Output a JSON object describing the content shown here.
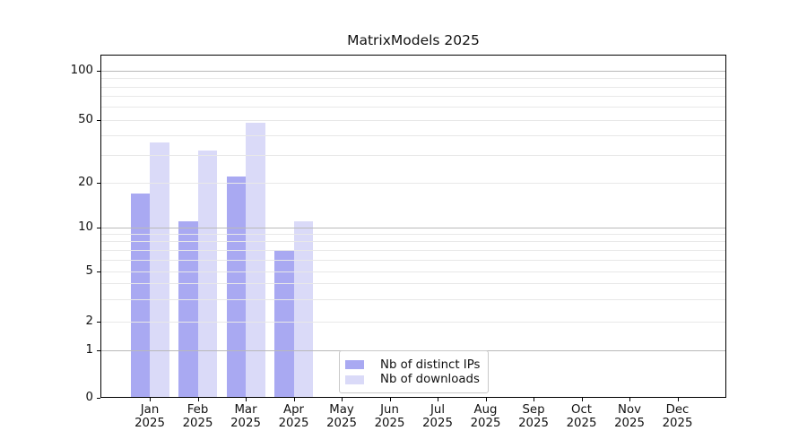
{
  "figure": {
    "title": "MatrixModels 2025"
  },
  "chart_data": {
    "type": "bar",
    "title": "MatrixModels 2025",
    "categories": [
      "Jan 2025",
      "Feb 2025",
      "Mar 2025",
      "Apr 2025",
      "May 2025",
      "Jun 2025",
      "Jul 2025",
      "Aug 2025",
      "Sep 2025",
      "Oct 2025",
      "Nov 2025",
      "Dec 2025"
    ],
    "series": [
      {
        "name": "Nb of distinct IPs",
        "color": "#a9a9f2",
        "values": [
          17,
          11,
          22,
          7,
          null,
          null,
          null,
          null,
          null,
          null,
          null,
          null
        ]
      },
      {
        "name": "Nb of downloads",
        "color": "#dadaf8",
        "values": [
          36,
          32,
          48,
          11,
          null,
          null,
          null,
          null,
          null,
          null,
          null,
          null
        ]
      }
    ],
    "xlabel": "",
    "ylabel": "",
    "yscale": "symlog",
    "yticks": [
      0,
      1,
      2,
      5,
      10,
      20,
      50,
      100
    ],
    "major_grid_values": [
      1,
      10,
      100
    ],
    "minor_grid_values": [
      2,
      3,
      4,
      5,
      6,
      7,
      8,
      9,
      20,
      30,
      40,
      50,
      60,
      70,
      80,
      90
    ],
    "grid": true,
    "grid_major_color": "#b9b9b9",
    "grid_minor_color": "#e8e8e8",
    "axis_color": "#000000",
    "text_color": "#111111",
    "legend_position": "lower center"
  }
}
